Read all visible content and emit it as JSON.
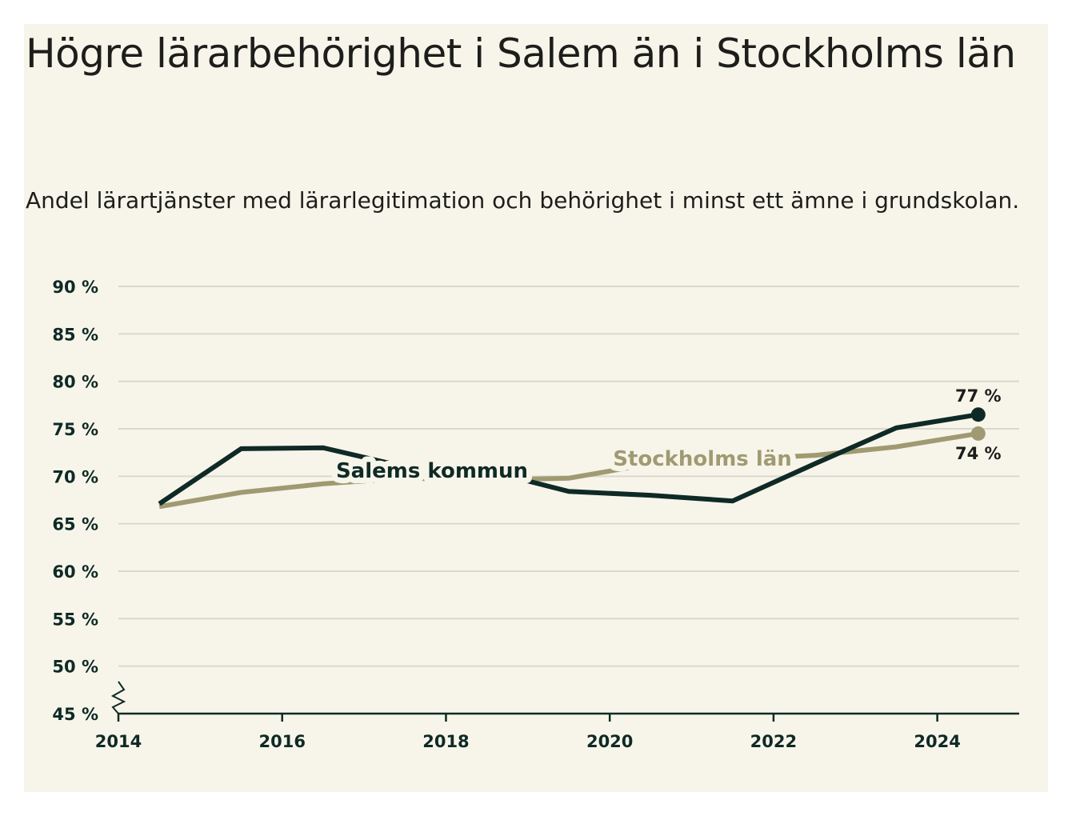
{
  "header": {
    "title": "Högre lärarbehörighet i Salem än i Stockholms län",
    "subtitle": "Andel lärartjänster med lärarlegitimation och behörighet i minst ett ämne i grundskolan."
  },
  "colors": {
    "background": "#f7f5ea",
    "salem": "#0f2a26",
    "stockholm": "#a09a72",
    "grid": "#d9d7d0"
  },
  "chart_data": {
    "type": "line",
    "title": "Högre lärarbehörighet i Salem än i Stockholms län",
    "subtitle": "Andel lärartjänster med lärarlegitimation och behörighet i minst ett ämne i grundskolan.",
    "xlabel": "",
    "ylabel": "",
    "x": [
      2014.5,
      2015.5,
      2016.5,
      2017.5,
      2018.5,
      2019.5,
      2020.5,
      2021.5,
      2022.5,
      2023.5,
      2024.5
    ],
    "x_ticks": [
      2014,
      2016,
      2018,
      2020,
      2022,
      2024
    ],
    "x_tick_labels": [
      "2014",
      "2016",
      "2018",
      "2020",
      "2022",
      "2024"
    ],
    "xlim": [
      2014,
      2025
    ],
    "y_ticks": [
      45,
      50,
      55,
      60,
      65,
      70,
      75,
      80,
      85,
      90
    ],
    "y_tick_labels": [
      "45 %",
      "50 %",
      "55 %",
      "60 %",
      "65 %",
      "70 %",
      "75 %",
      "80 %",
      "85 %",
      "90 %"
    ],
    "ylim": [
      45,
      90
    ],
    "axis_break": true,
    "grid": true,
    "series": [
      {
        "name": "Salems kommun",
        "color": "#0f2a26",
        "values": [
          67.1,
          72.9,
          73.0,
          71.0,
          70.6,
          68.4,
          68.0,
          67.4,
          71.3,
          75.1,
          76.5
        ],
        "end_label": "77 %"
      },
      {
        "name": "Stockholms län",
        "color": "#a09a72",
        "values": [
          66.8,
          68.3,
          69.2,
          69.8,
          69.6,
          69.8,
          71.3,
          71.8,
          72.2,
          73.1,
          74.5
        ],
        "end_label": "74 %"
      }
    ]
  }
}
